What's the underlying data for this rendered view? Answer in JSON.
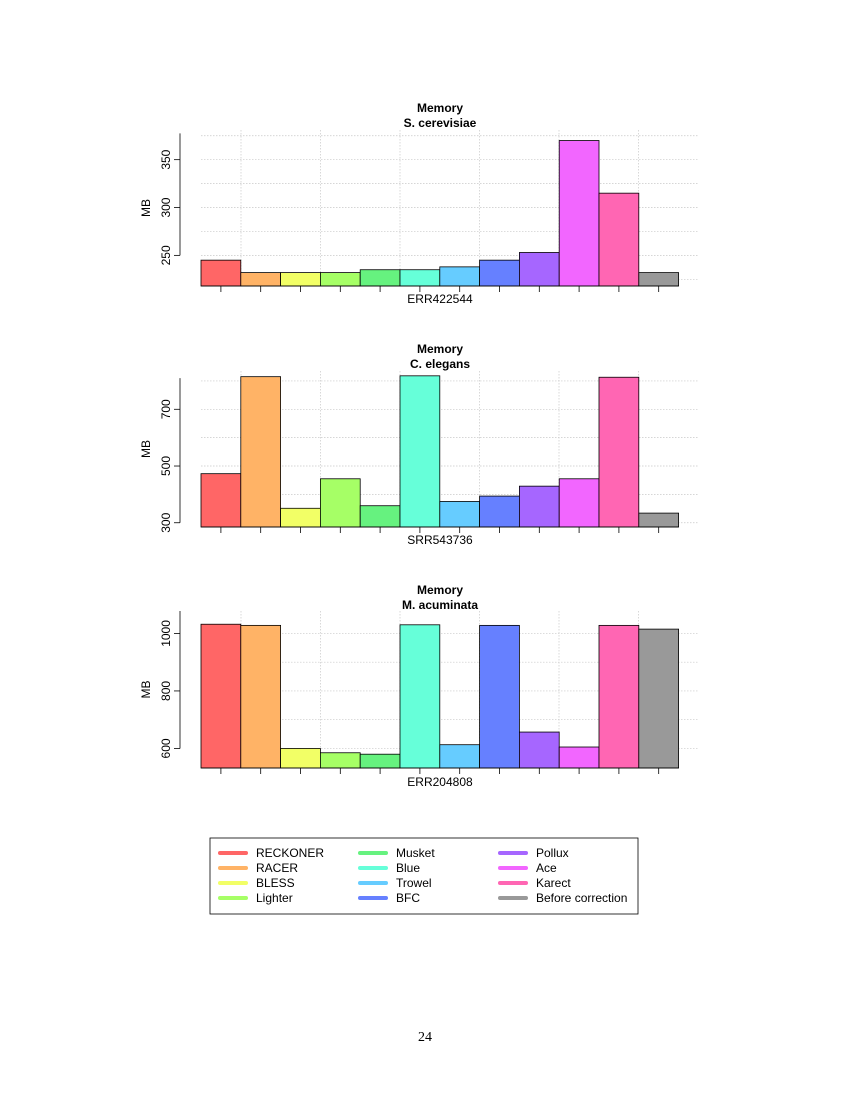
{
  "page_number": "24",
  "chart_data": [
    {
      "type": "bar",
      "title": "Memory",
      "subtitle": "S. cerevisiae",
      "xlabel": "ERR422544",
      "ylabel": "MB",
      "ylim": [
        218,
        381
      ],
      "yticks": [
        250,
        300,
        350
      ],
      "grid": true,
      "categories": [
        "RECKONER",
        "RACER",
        "BLESS",
        "Lighter",
        "Musket",
        "Blue",
        "Trowel",
        "BFC",
        "Pollux",
        "Ace",
        "Karect",
        "Before correction"
      ],
      "values": [
        245,
        232,
        232,
        232,
        235,
        235,
        238,
        245,
        253,
        370,
        315,
        232
      ]
    },
    {
      "type": "bar",
      "title": "Memory",
      "subtitle": "C. elegans",
      "xlabel": "SRR543736",
      "ylabel": "MB",
      "ylim": [
        285,
        835
      ],
      "yticks": [
        300,
        500,
        700
      ],
      "grid": true,
      "categories": [
        "RECKONER",
        "RACER",
        "BLESS",
        "Lighter",
        "Musket",
        "Blue",
        "Trowel",
        "BFC",
        "Pollux",
        "Ace",
        "Karect",
        "Before correction"
      ],
      "values": [
        473,
        815,
        351,
        455,
        360,
        818,
        375,
        394,
        429,
        455,
        813,
        334
      ]
    },
    {
      "type": "bar",
      "title": "Memory",
      "subtitle": "M. acuminata",
      "xlabel": "ERR204808",
      "ylabel": "MB",
      "ylim": [
        532,
        1078
      ],
      "yticks": [
        600,
        800,
        1000
      ],
      "grid": true,
      "categories": [
        "RECKONER",
        "RACER",
        "BLESS",
        "Lighter",
        "Musket",
        "Blue",
        "Trowel",
        "BFC",
        "Pollux",
        "Ace",
        "Karect",
        "Before correction"
      ],
      "values": [
        1032,
        1028,
        600,
        585,
        580,
        1030,
        613,
        1028,
        657,
        605,
        1028,
        1015
      ]
    }
  ],
  "legend": {
    "placement": "bottom-center",
    "entries": [
      {
        "label": "RECKONER",
        "color": "#FF6666"
      },
      {
        "label": "RACER",
        "color": "#FFB366"
      },
      {
        "label": "BLESS",
        "color": "#F2FF66"
      },
      {
        "label": "Lighter",
        "color": "#A6FF66"
      },
      {
        "label": "Musket",
        "color": "#66F27F"
      },
      {
        "label": "Blue",
        "color": "#66FFD9"
      },
      {
        "label": "Trowel",
        "color": "#66CCFF"
      },
      {
        "label": "BFC",
        "color": "#6680FF"
      },
      {
        "label": "Pollux",
        "color": "#A666FF"
      },
      {
        "label": "Ace",
        "color": "#F266FF"
      },
      {
        "label": "Karect",
        "color": "#FF66B3"
      },
      {
        "label": "Before correction",
        "color": "#999999"
      }
    ]
  }
}
